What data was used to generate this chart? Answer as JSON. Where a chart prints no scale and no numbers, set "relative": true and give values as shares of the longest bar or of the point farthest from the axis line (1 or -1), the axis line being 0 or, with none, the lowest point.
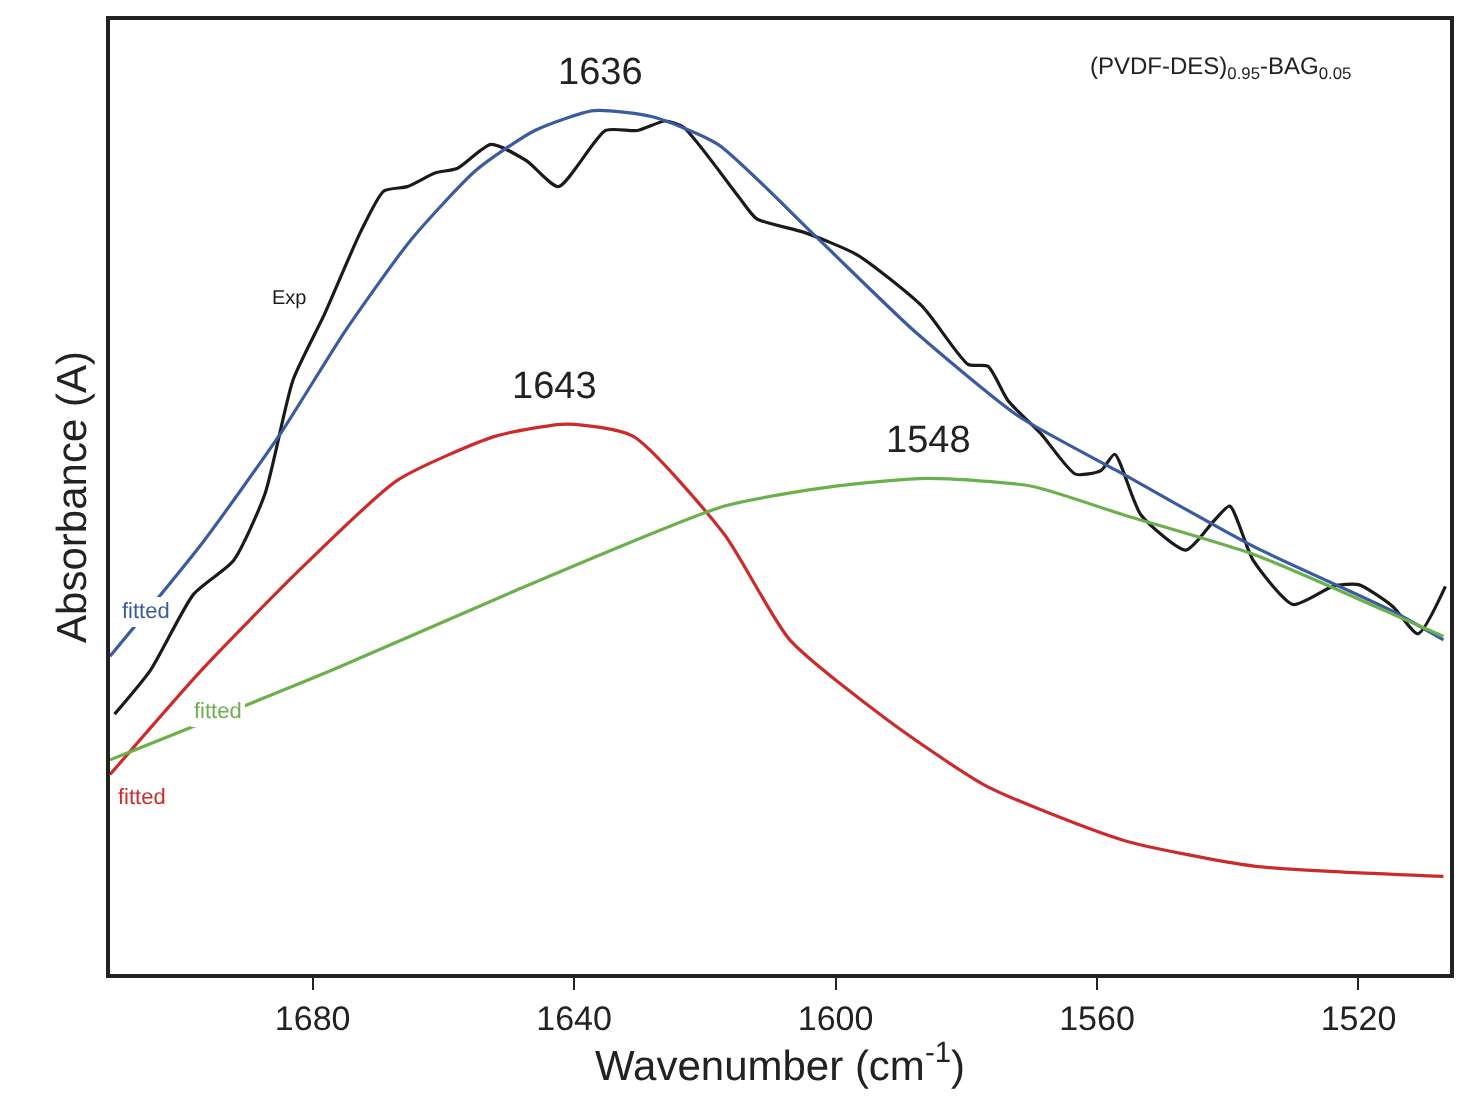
{
  "chart_data": {
    "type": "line",
    "relative": true,
    "xlabel": "Wavenumber (cm$^{-1}$)",
    "ylabel": "Absorbance (A)",
    "xlim": [
      1711,
      1506
    ],
    "xticks": [
      1680,
      1640,
      1600,
      1560,
      1520
    ],
    "marker": "none",
    "line_style": "solid",
    "series": [
      {
        "name": "Exp",
        "color": "#1a1a1a",
        "x": [
          1710.3,
          1704.8,
          1698.2,
          1692.1,
          1687.3,
          1683.0,
          1678.2,
          1672.7,
          1669.1,
          1665.5,
          1661.2,
          1657.9,
          1652.7,
          1647.3,
          1642.4,
          1635.2,
          1630.3,
          1626.1,
          1623.3,
          1614.8,
          1612.1,
          1604.8,
          1596.7,
          1586.7,
          1579.7,
          1576.7,
          1573.6,
          1568.5,
          1563.3,
          1559.4,
          1557.3,
          1553.3,
          1546.4,
          1542.1,
          1539.7,
          1536.1,
          1530.0,
          1523.9,
          1520.0,
          1514.8,
          1510.9,
          1506.7
        ],
        "values": [
          0.301,
          0.352,
          0.44,
          0.479,
          0.556,
          0.688,
          0.764,
          0.859,
          0.907,
          0.912,
          0.928,
          0.933,
          0.961,
          0.942,
          0.912,
          0.977,
          0.977,
          0.988,
          0.981,
          0.9,
          0.875,
          0.859,
          0.833,
          0.773,
          0.706,
          0.704,
          0.664,
          0.625,
          0.579,
          0.583,
          0.602,
          0.532,
          0.491,
          0.525,
          0.542,
          0.479,
          0.428,
          0.449,
          0.451,
          0.426,
          0.394,
          0.449
        ]
      },
      {
        "name": "fitted",
        "color": "#3a5ba0",
        "x": [
          1711,
          1697,
          1685,
          1675,
          1665,
          1655,
          1646,
          1637,
          1628,
          1618,
          1603,
          1588,
          1572,
          1556,
          1536,
          1515,
          1507
        ],
        "values": [
          0.368,
          0.498,
          0.625,
          0.745,
          0.85,
          0.931,
          0.977,
          1.0,
          0.993,
          0.961,
          0.854,
          0.745,
          0.646,
          0.579,
          0.495,
          0.421,
          0.387
        ]
      },
      {
        "name": "fitted",
        "color": "#cc2b2b",
        "x": [
          1711,
          1697,
          1682,
          1667,
          1652,
          1641,
          1631,
          1617,
          1607,
          1592,
          1577,
          1556,
          1536,
          1507
        ],
        "values": [
          0.231,
          0.352,
          0.468,
          0.572,
          0.623,
          0.637,
          0.623,
          0.509,
          0.387,
          0.294,
          0.218,
          0.155,
          0.125,
          0.113
        ]
      },
      {
        "name": "fitted",
        "color": "#6ab04c",
        "x": [
          1711,
          1677,
          1649,
          1617,
          1600,
          1586,
          1570,
          1556,
          1536,
          1516,
          1507
        ],
        "values": [
          0.248,
          0.352,
          0.444,
          0.542,
          0.565,
          0.574,
          0.565,
          0.532,
          0.486,
          0.421,
          0.391
        ]
      }
    ],
    "annotations": [
      {
        "text": "1636",
        "x": 1636,
        "y": 1.0
      },
      {
        "text": "1643",
        "x": 1643,
        "y": 0.637
      },
      {
        "text": "1548",
        "x": 1586,
        "y": 0.574
      },
      "(PVDF-DES)$_{0.95}$-BAG$_{0.05}$"
    ]
  }
}
